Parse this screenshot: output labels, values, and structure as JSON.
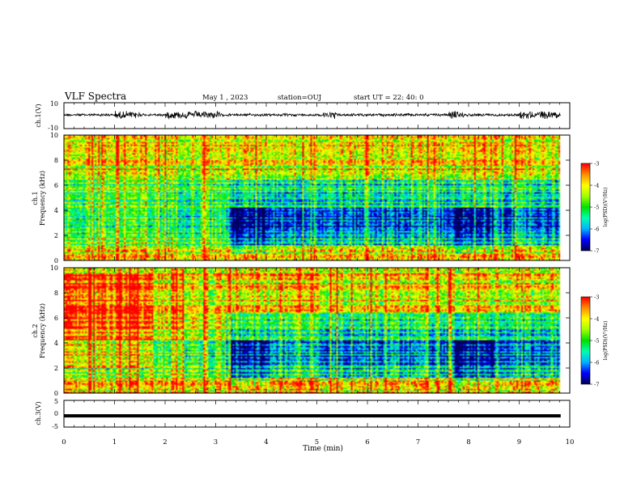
{
  "header": {
    "title": "VLF Spectra",
    "date": "May 1  , 2023",
    "station": "station=OUJ",
    "start": "start  UT  =   22: 40: 0"
  },
  "colors": {
    "colormap": [
      "#00005a",
      "#0000ff",
      "#00b4ff",
      "#00ffb0",
      "#00e000",
      "#a0ff00",
      "#ffff00",
      "#ff9000",
      "#ff0000",
      "#ffffff"
    ],
    "frame": "#000000"
  },
  "chart_data": [
    {
      "panel": "ch1-waveform",
      "type": "line",
      "ylabel": "ch.1(V)",
      "ylim": [
        -10,
        10
      ],
      "yticks": [
        "10",
        "-10"
      ],
      "xlim": [
        0,
        10
      ]
    },
    {
      "panel": "ch1-spectrogram",
      "type": "heatmap",
      "ylabel": "ch.1",
      "ylabel2": "Frequency  (kHz)",
      "ylim": [
        0,
        10
      ],
      "yticks": [
        "0",
        "2",
        "4",
        "6",
        "8",
        "10"
      ],
      "xlim": [
        0,
        10
      ],
      "colorbar": {
        "label": "log(PSD)(V²/Hz)",
        "range": [
          -7,
          -3
        ],
        "ticks": [
          "-3",
          "-4",
          "-5",
          "-6",
          "-7"
        ]
      }
    },
    {
      "panel": "ch2-spectrogram",
      "type": "heatmap",
      "ylabel": "ch.2",
      "ylabel2": "Frequency  (kHz)",
      "ylim": [
        0,
        10
      ],
      "yticks": [
        "0",
        "2",
        "4",
        "6",
        "8",
        "10"
      ],
      "xlim": [
        0,
        10
      ],
      "colorbar": {
        "label": "log(PSD)(V²/Hz)",
        "range": [
          -7,
          -3
        ],
        "ticks": [
          "-3",
          "-4",
          "-5",
          "-6",
          "-7"
        ]
      }
    },
    {
      "panel": "ch3-waveform",
      "type": "line",
      "ylabel": "ch.3(V)",
      "ylim": [
        -5,
        5
      ],
      "yticks": [
        "5",
        "0",
        "-5"
      ],
      "xlim": [
        0,
        10
      ],
      "xlabel": "Time  (min)",
      "xticks": [
        "0",
        "1",
        "2",
        "3",
        "4",
        "5",
        "6",
        "7",
        "8",
        "9",
        "10"
      ],
      "constant_value": -0.8
    }
  ]
}
